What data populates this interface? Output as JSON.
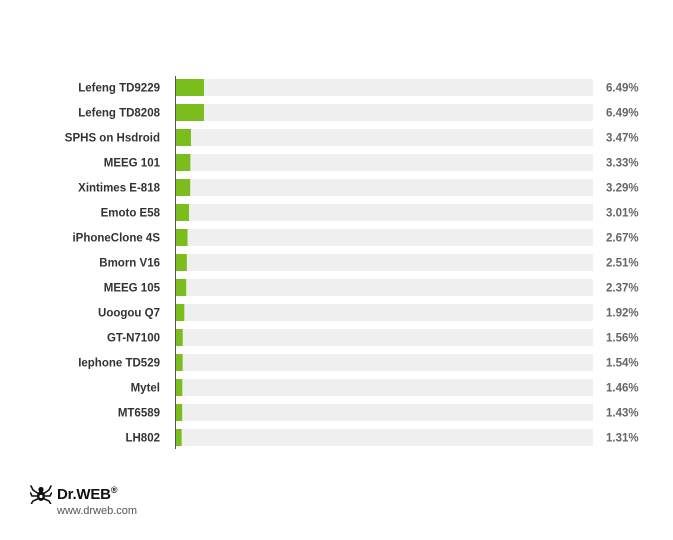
{
  "chart_data": {
    "type": "bar",
    "orientation": "horizontal",
    "categories": [
      "Lefeng TD9229",
      "Lefeng TD8208",
      "SPHS on Hsdroid",
      "MEEG 101",
      "Xintimes E-818",
      "Emoto E58",
      "iPhoneClone 4S",
      "Bmorn V16",
      "MEEG 105",
      "Uoogou Q7",
      "GT-N7100",
      "Iephone TD529",
      "Mytel",
      "MT6589",
      "LH802"
    ],
    "values": [
      6.49,
      6.49,
      3.47,
      3.33,
      3.29,
      3.01,
      2.67,
      2.51,
      2.37,
      1.92,
      1.56,
      1.54,
      1.46,
      1.43,
      1.31
    ],
    "value_labels": [
      "6.49%",
      "6.49%",
      "3.47%",
      "3.33%",
      "3.29%",
      "3.01%",
      "2.67%",
      "2.51%",
      "2.37%",
      "1.92%",
      "1.56%",
      "1.54%",
      "1.46%",
      "1.43%",
      "1.31%"
    ],
    "xlim": [
      0,
      100
    ],
    "grid": false,
    "title": "",
    "xlabel": "",
    "ylabel": "",
    "colors": {
      "bar": "#7cbd1e",
      "track": "#efefef",
      "axis": "#555555"
    }
  },
  "brand": {
    "name": "Dr.WEB",
    "mark": "®",
    "url": "www.drweb.com"
  }
}
